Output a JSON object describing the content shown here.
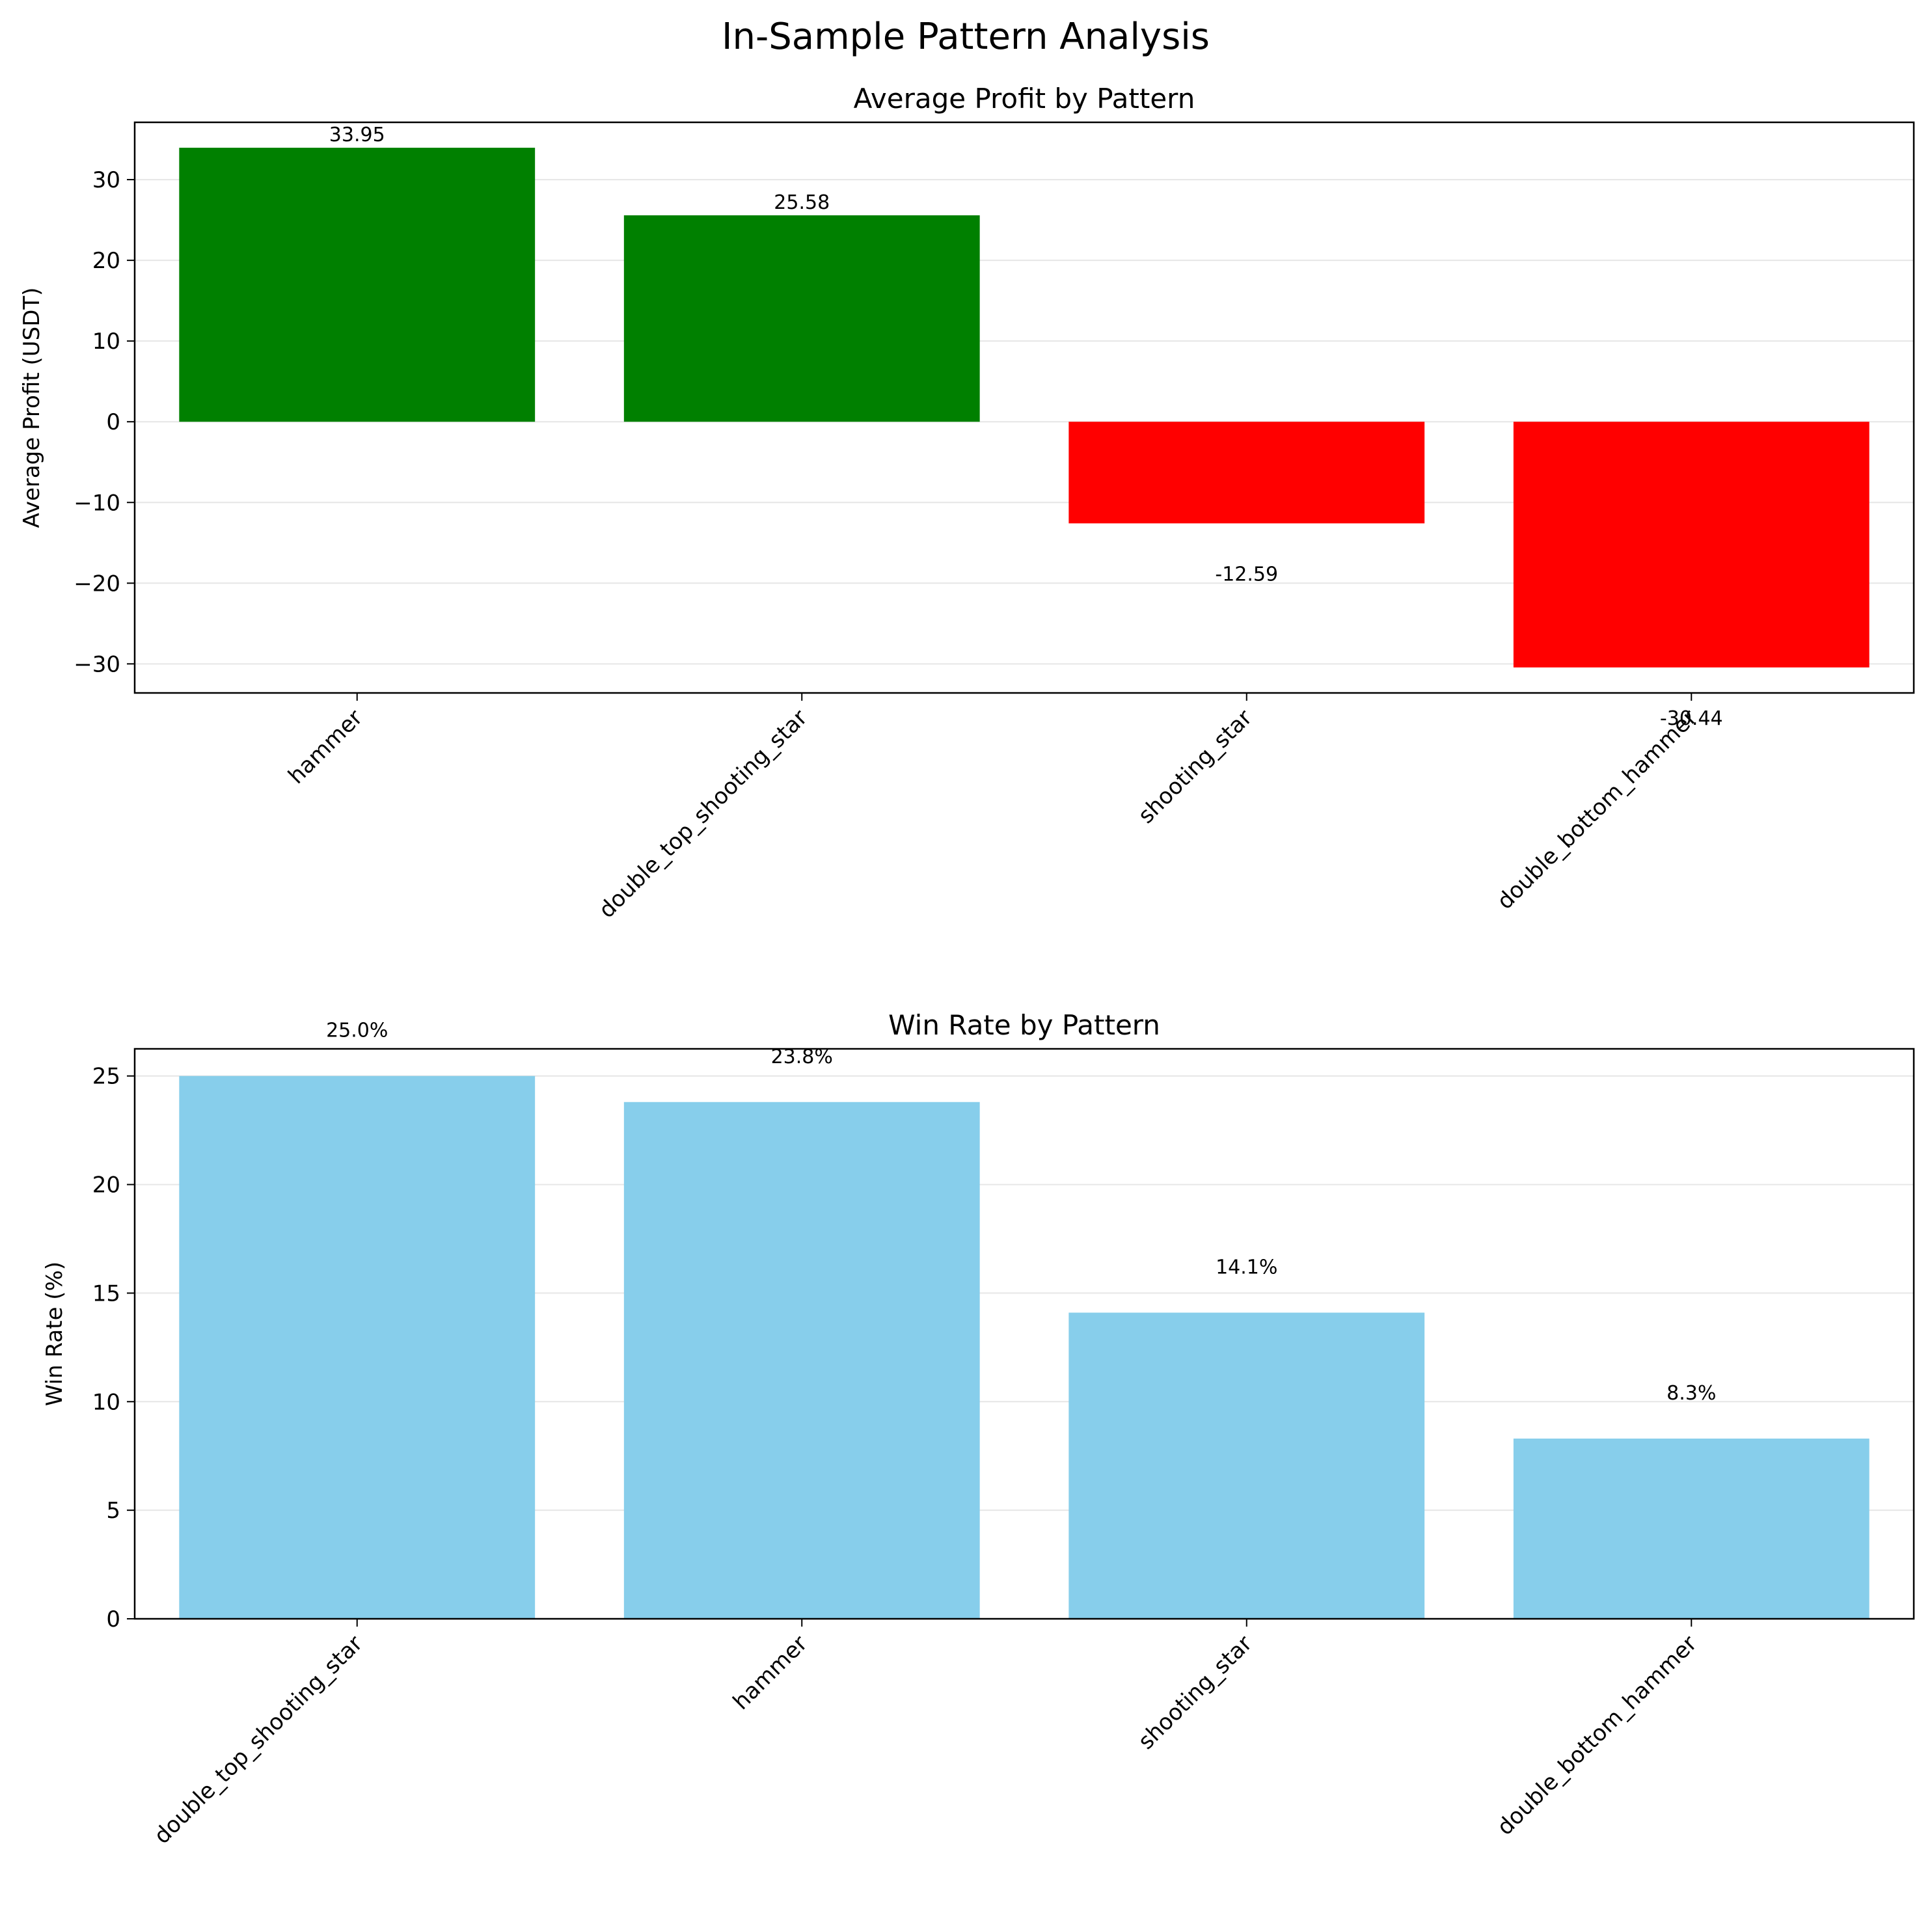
{
  "figure": {
    "title": "In-Sample Pattern Analysis"
  },
  "colors": {
    "positive": "#008000",
    "negative": "#ff0000",
    "winrate": "#87ceeb",
    "grid": "#e6e6e6",
    "axis": "#000000"
  },
  "chart_data": [
    {
      "type": "bar",
      "title": "Average Profit by Pattern",
      "xlabel": "",
      "ylabel": "Average Profit (USDT)",
      "categories": [
        "hammer",
        "double_top_shooting_star",
        "shooting_star",
        "double_bottom_hammer"
      ],
      "values": [
        33.95,
        25.58,
        -12.59,
        -30.44
      ],
      "value_labels": [
        "33.95",
        "25.58",
        "-12.59",
        "-30.44"
      ],
      "bar_colors": [
        "#008000",
        "#008000",
        "#ff0000",
        "#ff0000"
      ],
      "ylim": [
        -33.6,
        37.1
      ],
      "yticks": [
        30,
        20,
        10,
        0,
        -10,
        -20,
        -30
      ],
      "ytick_labels": [
        "30",
        "20",
        "10",
        "0",
        "−10",
        "−20",
        "−30"
      ],
      "grid": "y"
    },
    {
      "type": "bar",
      "title": "Win Rate by Pattern",
      "xlabel": "",
      "ylabel": "Win Rate (%)",
      "categories": [
        "double_top_shooting_star",
        "hammer",
        "shooting_star",
        "double_bottom_hammer"
      ],
      "values": [
        25.0,
        23.8,
        14.1,
        8.3
      ],
      "value_labels": [
        "25.0%",
        "23.8%",
        "14.1%",
        "8.3%"
      ],
      "bar_colors": [
        "#87ceeb",
        "#87ceeb",
        "#87ceeb",
        "#87ceeb"
      ],
      "ylim": [
        0,
        26.25
      ],
      "yticks": [
        25,
        20,
        15,
        10,
        5,
        0
      ],
      "ytick_labels": [
        "25",
        "20",
        "15",
        "10",
        "5",
        "0"
      ],
      "grid": "y"
    }
  ]
}
